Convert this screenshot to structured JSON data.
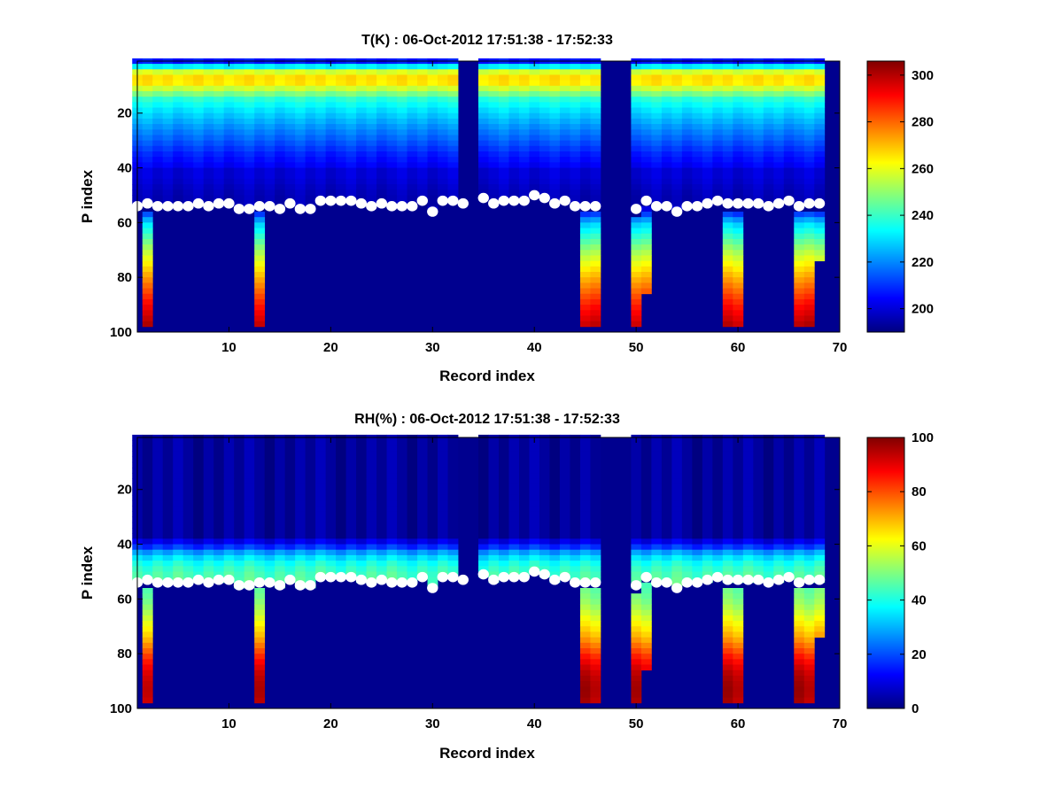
{
  "chart_data": [
    {
      "type": "heatmap",
      "title": "T(K) : 06-Oct-2012 17:51:38 - 17:52:33",
      "xlabel": "Record index",
      "ylabel": "P index",
      "xlim": [
        1,
        70
      ],
      "ylim": [
        1,
        100
      ],
      "xticks": [
        "10",
        "20",
        "30",
        "40",
        "50",
        "60",
        "70"
      ],
      "yticks": [
        "20",
        "40",
        "60",
        "80",
        "100"
      ],
      "colorbar": {
        "min": 190,
        "max": 306,
        "ticks": [
          "200",
          "220",
          "240",
          "260",
          "280",
          "300"
        ]
      },
      "missing_columns": [
        33,
        47,
        48,
        49,
        69,
        70
      ],
      "surface_index": [
        54,
        53,
        54,
        54,
        54,
        54,
        53,
        54,
        53,
        53,
        55,
        55,
        54,
        54,
        55,
        53,
        55,
        55,
        52,
        52,
        52,
        52,
        53,
        54,
        53,
        54,
        54,
        54,
        52,
        56,
        52,
        52,
        53,
        null,
        51,
        53,
        52,
        52,
        52,
        50,
        51,
        53,
        52,
        54,
        54,
        54,
        null,
        null,
        null,
        55,
        52,
        54,
        54,
        56,
        54,
        54,
        53,
        52,
        53,
        53,
        53,
        53,
        54,
        53,
        52,
        54,
        53,
        53,
        null,
        null
      ],
      "profile_bottom": [
        100,
        98,
        100,
        100,
        100,
        100,
        100,
        100,
        100,
        100,
        100,
        100,
        98,
        100,
        100,
        100,
        100,
        100,
        100,
        100,
        100,
        100,
        100,
        100,
        100,
        100,
        100,
        100,
        100,
        100,
        100,
        100,
        100,
        null,
        100,
        100,
        100,
        100,
        100,
        100,
        100,
        100,
        100,
        100,
        98,
        98,
        null,
        null,
        null,
        98,
        86,
        100,
        100,
        100,
        100,
        100,
        100,
        100,
        98,
        98,
        100,
        100,
        100,
        100,
        100,
        98,
        98,
        73,
        null,
        null
      ],
      "temperature_profile": {
        "levels": [
          1,
          3,
          5,
          7,
          9,
          12,
          15,
          18,
          22,
          26,
          30,
          35,
          40,
          45,
          50,
          54,
          60,
          70,
          80,
          90,
          98
        ],
        "values": [
          207,
          232,
          258,
          266,
          265,
          252,
          238,
          232,
          226,
          220,
          215,
          208,
          203,
          199,
          196,
          196,
          228,
          252,
          272,
          290,
          300
        ]
      }
    },
    {
      "type": "heatmap",
      "title": "RH(%) : 06-Oct-2012 17:51:38 - 17:52:33",
      "xlabel": "Record index",
      "ylabel": "P index",
      "xlim": [
        1,
        70
      ],
      "ylim": [
        1,
        100
      ],
      "xticks": [
        "10",
        "20",
        "30",
        "40",
        "50",
        "60",
        "70"
      ],
      "yticks": [
        "20",
        "40",
        "60",
        "80",
        "100"
      ],
      "colorbar": {
        "min": 0,
        "max": 100,
        "ticks": [
          "0",
          "20",
          "40",
          "60",
          "80",
          "100"
        ]
      },
      "missing_columns": [
        33,
        47,
        48,
        49,
        69,
        70
      ],
      "humidity_profile": {
        "levels": [
          1,
          30,
          37,
          40,
          43,
          46,
          50,
          54,
          58,
          62,
          66,
          70,
          74,
          78,
          82,
          86,
          90,
          94,
          98
        ],
        "values": [
          3,
          3,
          6,
          12,
          28,
          38,
          44,
          46,
          48,
          52,
          58,
          64,
          70,
          78,
          86,
          92,
          95,
          96,
          94
        ]
      }
    }
  ]
}
